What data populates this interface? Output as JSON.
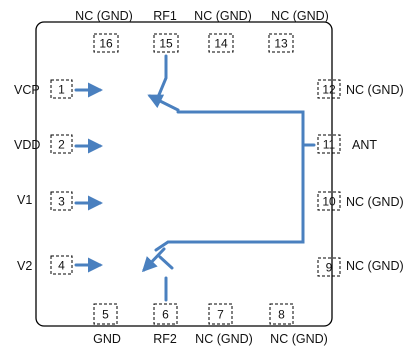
{
  "colors": {
    "line": "#4a80bf",
    "border": "#000000",
    "text": "#111111"
  },
  "pins": [
    {
      "number": "1",
      "label": "VCP"
    },
    {
      "number": "2",
      "label": "VDD"
    },
    {
      "number": "3",
      "label": "V1"
    },
    {
      "number": "4",
      "label": "V2"
    },
    {
      "number": "5",
      "label": "GND"
    },
    {
      "number": "6",
      "label": "RF2"
    },
    {
      "number": "7",
      "label": "NC (GND)"
    },
    {
      "number": "8",
      "label": "NC (GND)"
    },
    {
      "number": "9",
      "label": "NC (GND)"
    },
    {
      "number": "10",
      "label": "NC (GND)"
    },
    {
      "number": "11",
      "label": "ANT"
    },
    {
      "number": "12",
      "label": "NC (GND)"
    },
    {
      "number": "13",
      "label": "NC (GND)"
    },
    {
      "number": "14",
      "label": "NC (GND)"
    },
    {
      "number": "15",
      "label": "RF1"
    },
    {
      "number": "16",
      "label": "NC (GND)"
    }
  ]
}
